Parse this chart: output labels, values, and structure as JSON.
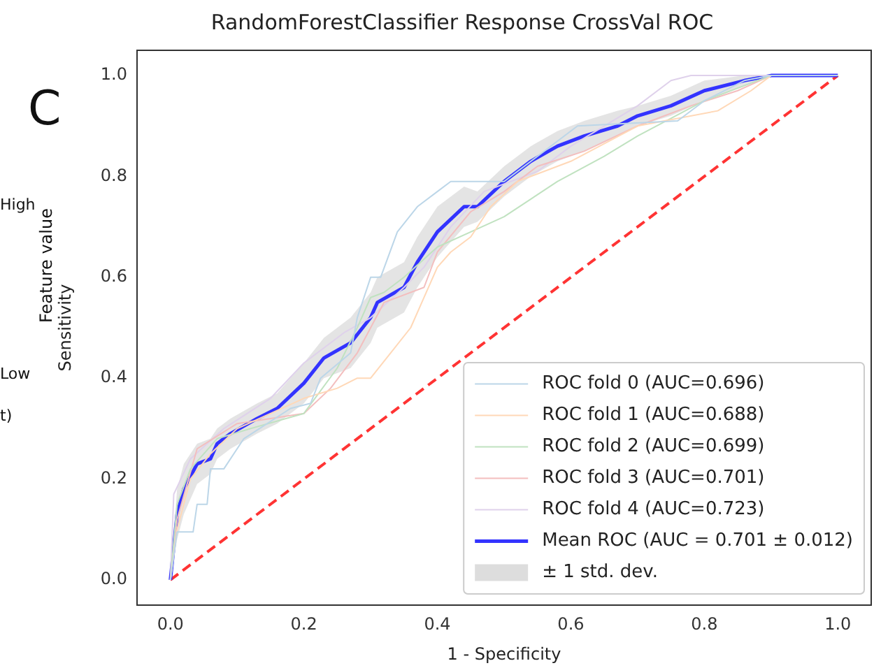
{
  "chart_data": {
    "type": "line",
    "title": "RandomForestClassifier Response CrossVal ROC",
    "xlabel": "1 - Specificity",
    "ylabel": "Sensitivity",
    "annotations": [
      "C",
      "High",
      "Feature value",
      "Low",
      "t)",
      "± 1 std. dev."
    ],
    "xlim": [
      -0.05,
      1.05
    ],
    "ylim": [
      -0.05,
      1.05
    ],
    "xticks": [
      {
        "value": 0,
        "label": "0.0"
      },
      {
        "value": 0.2,
        "label": "0.2"
      },
      {
        "value": 0.4,
        "label": "0.4"
      },
      {
        "value": 0.6,
        "label": "0.6"
      },
      {
        "value": 0.8,
        "label": "0.8"
      },
      {
        "value": 1,
        "label": "1.0"
      }
    ],
    "yticks": [
      {
        "value": 0,
        "label": "0.0"
      },
      {
        "value": 0.2,
        "label": "0.2"
      },
      {
        "value": 0.4,
        "label": "0.4"
      },
      {
        "value": 0.6,
        "label": "0.6"
      },
      {
        "value": 0.8,
        "label": "0.8"
      },
      {
        "value": 1,
        "label": "1.0"
      }
    ],
    "grid": false,
    "legend": "bottom right",
    "marker": "none",
    "series": [
      {
        "name": "ROC fold 0 (AUC=0.696)",
        "color": "#bcd6e8",
        "x": [
          0,
          0.01,
          0.034,
          0.04,
          0.055,
          0.06,
          0.08,
          0.11,
          0.18,
          0.21,
          0.225,
          0.27,
          0.28,
          0.3,
          0.315,
          0.34,
          0.37,
          0.4,
          0.42,
          0.5,
          0.61,
          0.76,
          0.8,
          0.86,
          0.9,
          1
        ],
        "values": [
          0,
          0.095,
          0.095,
          0.15,
          0.15,
          0.22,
          0.22,
          0.28,
          0.34,
          0.35,
          0.4,
          0.45,
          0.52,
          0.6,
          0.6,
          0.69,
          0.74,
          0.77,
          0.79,
          0.79,
          0.9,
          0.91,
          0.95,
          0.99,
          1,
          1
        ]
      },
      {
        "name": "ROC fold 1 (AUC=0.688)",
        "color": "#ffd8b7",
        "x": [
          0,
          0.01,
          0.03,
          0.06,
          0.1,
          0.2,
          0.25,
          0.28,
          0.3,
          0.33,
          0.36,
          0.38,
          0.4,
          0.42,
          0.45,
          0.48,
          0.52,
          0.6,
          0.7,
          0.82,
          0.87,
          0.9,
          1
        ],
        "values": [
          0,
          0.1,
          0.2,
          0.25,
          0.3,
          0.36,
          0.38,
          0.4,
          0.4,
          0.45,
          0.5,
          0.56,
          0.62,
          0.65,
          0.68,
          0.74,
          0.79,
          0.83,
          0.9,
          0.93,
          0.97,
          1,
          1
        ]
      },
      {
        "name": "ROC fold 2 (AUC=0.699)",
        "color": "#c0e2c0",
        "x": [
          0,
          0.01,
          0.03,
          0.07,
          0.12,
          0.2,
          0.25,
          0.28,
          0.3,
          0.32,
          0.35,
          0.4,
          0.45,
          0.5,
          0.58,
          0.65,
          0.7,
          0.8,
          0.9,
          1
        ],
        "values": [
          0,
          0.15,
          0.22,
          0.28,
          0.3,
          0.33,
          0.42,
          0.5,
          0.56,
          0.57,
          0.6,
          0.66,
          0.69,
          0.72,
          0.79,
          0.84,
          0.88,
          0.95,
          1,
          1
        ]
      },
      {
        "name": "ROC fold 3 (AUC=0.701)",
        "color": "#f3bebe",
        "x": [
          0,
          0.01,
          0.04,
          0.1,
          0.2,
          0.24,
          0.28,
          0.32,
          0.38,
          0.4,
          0.45,
          0.5,
          0.55,
          0.62,
          0.7,
          0.78,
          0.85,
          0.9,
          1
        ],
        "values": [
          0,
          0.12,
          0.26,
          0.31,
          0.33,
          0.38,
          0.45,
          0.55,
          0.58,
          0.65,
          0.73,
          0.77,
          0.82,
          0.85,
          0.9,
          0.94,
          0.97,
          1,
          1
        ]
      },
      {
        "name": "ROC fold 4 (AUC=0.723)",
        "color": "#dfd1eb",
        "x": [
          0,
          0.005,
          0.03,
          0.08,
          0.15,
          0.2,
          0.26,
          0.3,
          0.35,
          0.38,
          0.42,
          0.47,
          0.55,
          0.6,
          0.65,
          0.7,
          0.75,
          0.78,
          1
        ],
        "values": [
          0,
          0.17,
          0.24,
          0.3,
          0.36,
          0.43,
          0.49,
          0.52,
          0.58,
          0.62,
          0.7,
          0.77,
          0.81,
          0.86,
          0.9,
          0.94,
          0.99,
          1,
          1
        ]
      },
      {
        "name": "Mean ROC (AUC = 0.701 ± 0.012)",
        "color": "#3333ff",
        "x": [
          0,
          0.01,
          0.02,
          0.04,
          0.06,
          0.07,
          0.09,
          0.13,
          0.16,
          0.2,
          0.23,
          0.27,
          0.3,
          0.31,
          0.35,
          0.37,
          0.4,
          0.44,
          0.46,
          0.5,
          0.54,
          0.58,
          0.62,
          0.67,
          0.7,
          0.75,
          0.8,
          0.86,
          0.9,
          1
        ],
        "values": [
          0,
          0.13,
          0.18,
          0.23,
          0.24,
          0.27,
          0.29,
          0.32,
          0.34,
          0.39,
          0.44,
          0.47,
          0.52,
          0.55,
          0.58,
          0.63,
          0.69,
          0.74,
          0.74,
          0.79,
          0.83,
          0.86,
          0.88,
          0.9,
          0.92,
          0.94,
          0.97,
          0.99,
          1,
          1
        ],
        "lower": [
          0,
          0.08,
          0.13,
          0.19,
          0.21,
          0.24,
          0.26,
          0.29,
          0.31,
          0.35,
          0.4,
          0.42,
          0.47,
          0.5,
          0.53,
          0.58,
          0.64,
          0.7,
          0.71,
          0.76,
          0.8,
          0.83,
          0.85,
          0.88,
          0.9,
          0.92,
          0.95,
          0.98,
          1,
          1
        ],
        "upper": [
          0,
          0.18,
          0.23,
          0.27,
          0.28,
          0.3,
          0.32,
          0.35,
          0.37,
          0.43,
          0.48,
          0.52,
          0.57,
          0.6,
          0.63,
          0.68,
          0.74,
          0.78,
          0.77,
          0.82,
          0.86,
          0.89,
          0.91,
          0.93,
          0.94,
          0.96,
          0.99,
          1,
          1,
          1
        ]
      },
      {
        "color": "#ff3333",
        "line_style": "dashed",
        "x": [
          0,
          1
        ],
        "values": [
          0,
          1
        ]
      }
    ]
  }
}
